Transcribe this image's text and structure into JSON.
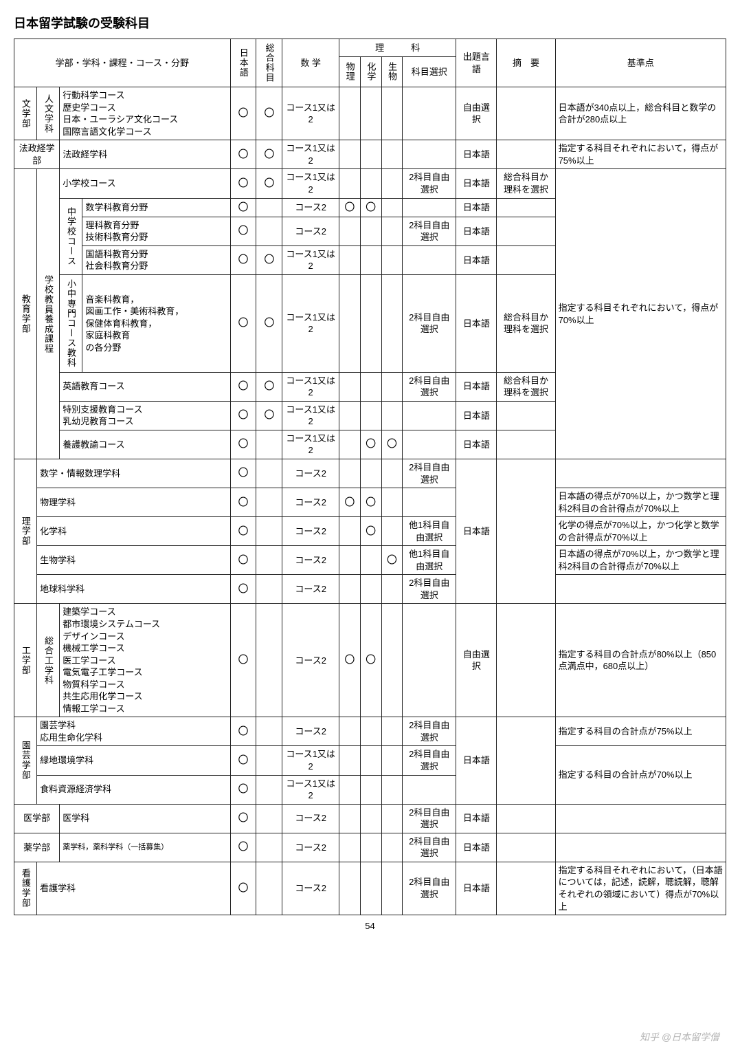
{
  "title": "日本留学試験の受験科目",
  "pagenum": "54",
  "watermark": "知乎 @日本留学僧",
  "circle": "〇",
  "headers": {
    "faculty": "学部・学科・課程・コース・分野",
    "jp": "日本語",
    "sogo": "総合科目",
    "math": "数 学",
    "sci": "理　　　科",
    "physics": "物理",
    "chem": "化学",
    "bio": "生物",
    "subj_select": "科目選択",
    "lang": "出題言語",
    "summary": "摘　要",
    "criteria": "基準点"
  },
  "math_c12": "コース1又は2",
  "math_c2": "コース2",
  "lang_jp": "日本語",
  "lang_free": "自由選択",
  "sel_2free": "2科目自由選択",
  "sel_1other": "他1科目自由選択",
  "summary_sr": "総合科目か理科を選択",
  "faculties": {
    "bun": "文学部",
    "bun_jinbun": "人文学科",
    "bun_courses": "行動科学コース\n歴史学コース\n日本・ユーラシア文化コース\n国際言語文化学コース",
    "bun_criteria": "日本語が340点以上，総合科目と数学の合計が280点以上",
    "hosei": "法政経学部",
    "hosei_dept": "法政経学科",
    "hosei_criteria": "指定する科目それぞれにおいて，得点が75%以上",
    "kyoiku": "教育学部",
    "kyoiku_prog": "学校教員養成課程",
    "kyoiku_elem": "小学校コース",
    "kyoiku_chu": "中学校コース",
    "kyoiku_chu_math": "数学科教育分野",
    "kyoiku_chu_sci": "理科教育分野\n技術科教育分野",
    "kyoiku_chu_lang": "国語科教育分野\n社会科教育分野",
    "kyoiku_senmon": "小中専門コース教科",
    "kyoiku_senmon_list": "音楽科教育，\n図画工作・美術科教育，\n保健体育科教育，\n家庭科教育\nの各分野",
    "kyoiku_eng": "英語教育コース",
    "kyoiku_special": "特別支援教育コース\n乳幼児教育コース",
    "kyoiku_yogo": "養護教諭コース",
    "kyoiku_criteria": "指定する科目それぞれにおいて，得点が70%以上",
    "ri": "理学部",
    "ri_math": "数学・情報数理学科",
    "ri_phys": "物理学科",
    "ri_chem": "化学科",
    "ri_bio": "生物学科",
    "ri_earth": "地球科学科",
    "ri_phys_criteria": "日本語の得点が70%以上，かつ数学と理科2科目の合計得点が70%以上",
    "ri_chem_criteria": "化学の得点が70%以上，かつ化学と数学の合計得点が70%以上",
    "ri_bio_criteria": "日本語の得点が70%以上，かつ数学と理科2科目の合計得点が70%以上",
    "ko": "工学部",
    "ko_sogo": "総合工学科",
    "ko_courses": "建築学コース\n都市環境システムコース\nデザインコース\n機械工学コース\n医工学コース\n電気電子工学コース\n物質科学コース\n共生応用化学コース\n情報工学コース",
    "ko_criteria": "指定する科目の合計点が80%以上（850点満点中，680点以上）",
    "en": "園芸学部",
    "en_dept1": "園芸学科\n応用生命化学科",
    "en_dept2": "緑地環境学科",
    "en_dept3": "食料資源経済学科",
    "en_criteria1": "指定する科目の合計点が75%以上",
    "en_criteria2": "指定する科目の合計点が70%以上",
    "med": "医学部",
    "med_dept": "医学科",
    "yaku": "薬学部",
    "yaku_dept": "薬学科，薬科学科（一括募集）",
    "kango": "看護学部",
    "kango_dept": "看護学科",
    "kango_criteria": "指定する科目それぞれにおいて，（日本語については，記述，読解，聴読解，聴解それぞれの領域において）得点が70%以上"
  }
}
